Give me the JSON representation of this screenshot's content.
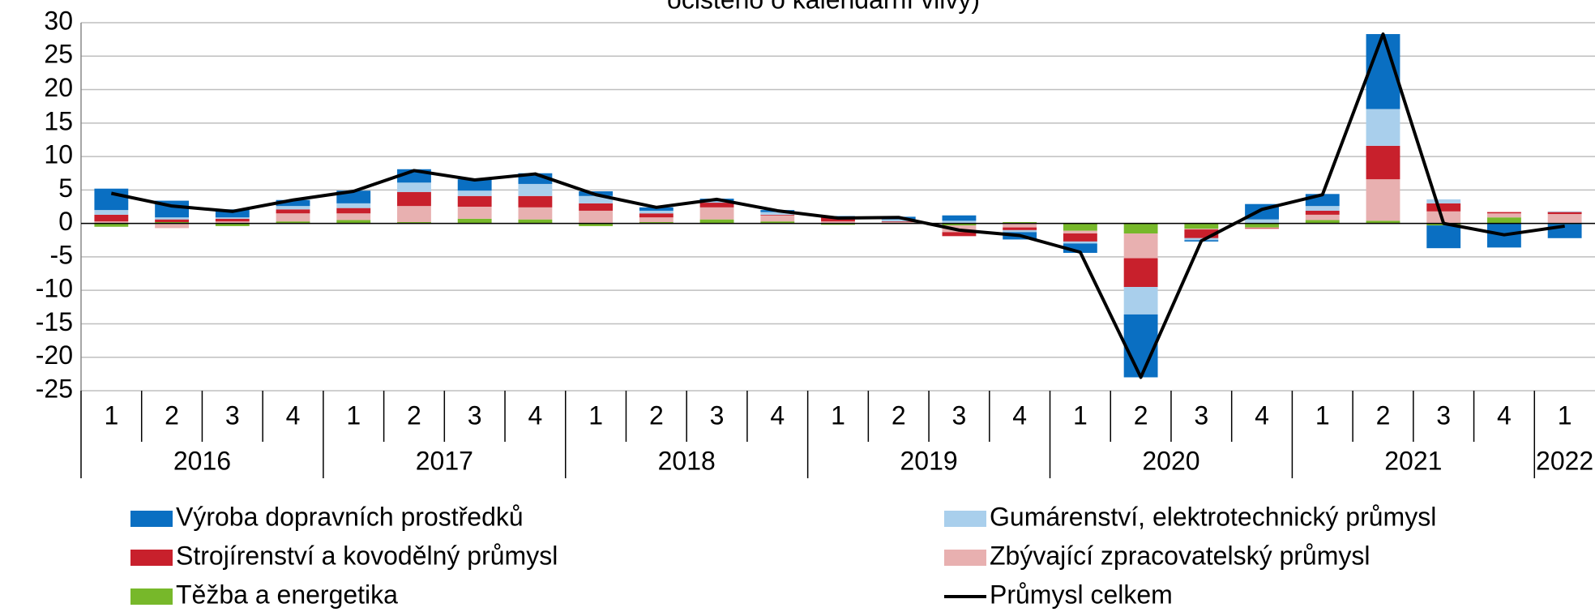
{
  "chart_data": {
    "type": "bar",
    "stacked": true,
    "title": "očištěno o kalendářní vlivy)",
    "categories": [
      "1",
      "2",
      "3",
      "4",
      "1",
      "2",
      "3",
      "4",
      "1",
      "2",
      "3",
      "4",
      "1",
      "2",
      "3",
      "4",
      "1",
      "2",
      "3",
      "4",
      "1",
      "2",
      "3",
      "4",
      "1"
    ],
    "category_groups": [
      "2016",
      "2017",
      "2018",
      "2019",
      "2020",
      "2021",
      "2022"
    ],
    "ylim": [
      -25,
      30
    ],
    "yticks": [
      -25,
      -20,
      -15,
      -10,
      -5,
      0,
      5,
      10,
      15,
      20,
      25,
      30
    ],
    "grid": true,
    "series": [
      {
        "name": "Těžba a energetika",
        "color": "#77b82a",
        "values": [
          -0.5,
          0.2,
          -0.4,
          0.3,
          0.5,
          0.2,
          0.7,
          0.6,
          -0.4,
          0.2,
          0.6,
          0.3,
          -0.2,
          0.1,
          -0.3,
          0.2,
          -1.1,
          -1.5,
          -0.8,
          -0.6,
          0.5,
          0.4,
          -0.3,
          0.9,
          -0.1
        ]
      },
      {
        "name": "Zbývající zpracovatelský průmysl",
        "color": "#e8b0b0",
        "values": [
          0.3,
          -0.7,
          0.3,
          1.2,
          1.0,
          2.4,
          1.8,
          1.8,
          1.9,
          0.7,
          1.8,
          0.9,
          0.3,
          0.1,
          -1.0,
          -0.6,
          -0.4,
          -3.7,
          -0.1,
          -0.1,
          0.8,
          6.2,
          1.8,
          0.6,
          1.4
        ]
      },
      {
        "name": "Strojírenství a kovodělný průmysl",
        "color": "#c8202c",
        "values": [
          1.0,
          0.4,
          0.4,
          0.6,
          0.8,
          2.1,
          1.6,
          1.7,
          1.1,
          0.6,
          0.7,
          0.1,
          0.6,
          0.1,
          -0.6,
          -0.4,
          -1.2,
          -4.3,
          -1.3,
          -0.1,
          0.6,
          5.0,
          1.2,
          0.2,
          0.3
        ]
      },
      {
        "name": "Gumárenství, elektrotechnický průmysl",
        "color": "#a9cfec",
        "values": [
          0.7,
          0.3,
          0.2,
          0.5,
          0.7,
          1.4,
          0.8,
          1.8,
          1.1,
          0.4,
          0.2,
          0.4,
          0.1,
          0.3,
          0.4,
          -0.3,
          -0.3,
          -4.1,
          -0.3,
          0.6,
          0.7,
          5.5,
          0.6,
          0.0,
          0.1
        ]
      },
      {
        "name": "Výroba dopravních prostředků",
        "color": "#0a6fc2",
        "values": [
          3.2,
          2.5,
          1.2,
          0.9,
          1.9,
          2.0,
          1.7,
          1.6,
          0.7,
          0.5,
          0.4,
          0.3,
          0.1,
          0.4,
          0.8,
          -1.1,
          -1.4,
          -9.4,
          -0.2,
          2.3,
          1.8,
          11.2,
          -3.4,
          -3.6,
          -2.1
        ]
      },
      {
        "name": "Průmysl celkem",
        "type": "line",
        "color": "#000000",
        "values": [
          4.5,
          2.6,
          1.8,
          3.5,
          4.8,
          7.9,
          6.5,
          7.4,
          4.3,
          2.4,
          3.6,
          1.9,
          0.8,
          0.9,
          -1.0,
          -1.8,
          -4.3,
          -23.0,
          -2.6,
          2.1,
          4.3,
          28.3,
          0.0,
          -1.7,
          -0.4
        ]
      }
    ]
  }
}
